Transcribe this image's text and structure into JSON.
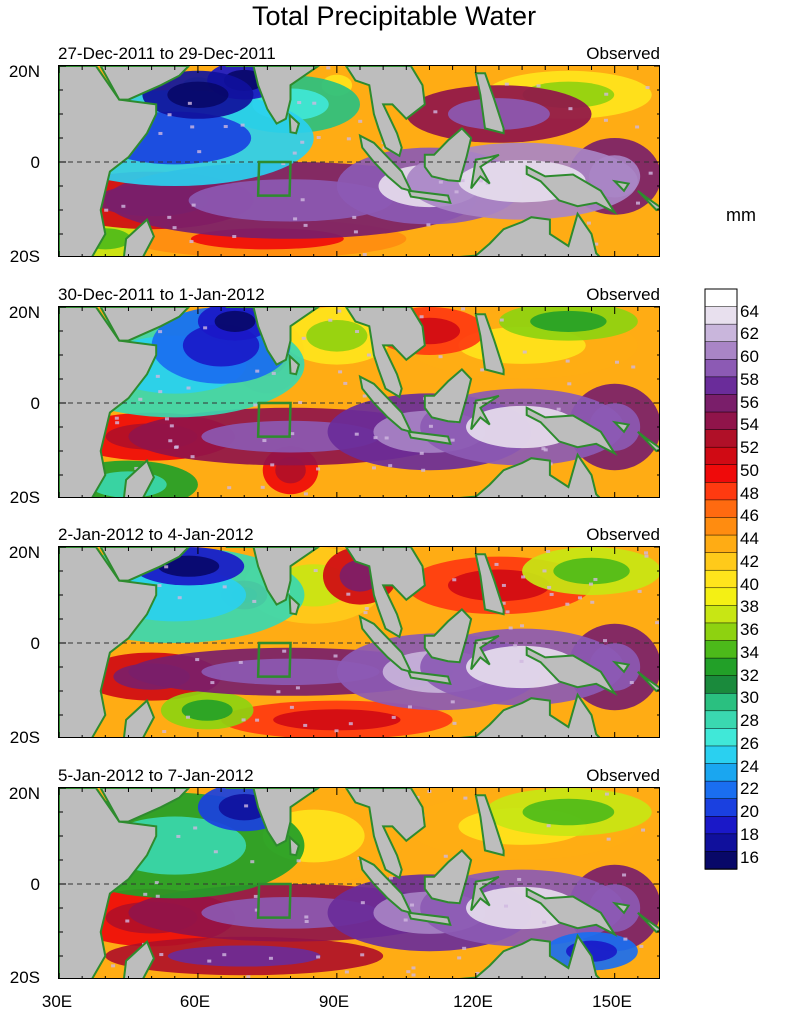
{
  "title": "Total Precipitable Water",
  "unit": "mm",
  "panels": [
    {
      "period": "27-Dec-2011 to 29-Dec-2011",
      "tag": "Observed"
    },
    {
      "period": "30-Dec-2011 to 1-Jan-2012",
      "tag": "Observed"
    },
    {
      "period": "2-Jan-2012 to 4-Jan-2012",
      "tag": "Observed"
    },
    {
      "period": "5-Jan-2012 to 7-Jan-2012",
      "tag": "Observed"
    }
  ],
  "lat_labels": [
    "20N",
    "0",
    "20S"
  ],
  "lon_labels": [
    "30E",
    "60E",
    "90E",
    "120E",
    "150E"
  ],
  "colorbar": {
    "labels": [
      "64",
      "62",
      "60",
      "58",
      "56",
      "54",
      "52",
      "50",
      "48",
      "46",
      "44",
      "42",
      "40",
      "38",
      "36",
      "34",
      "32",
      "30",
      "28",
      "26",
      "24",
      "22",
      "20",
      "18",
      "16"
    ],
    "min": 15,
    "max": 66,
    "colors": [
      "#ffffff",
      "#e8e0ee",
      "#c9b6dc",
      "#a985c6",
      "#8c5ab4",
      "#6a2c9a",
      "#7a1e6a",
      "#90144a",
      "#b01028",
      "#d00a14",
      "#ef0a0a",
      "#ff3a10",
      "#ff6a10",
      "#ff8c10",
      "#ffac14",
      "#ffca1a",
      "#ffe41c",
      "#f4f014",
      "#c8e614",
      "#8ed210",
      "#4cba1a",
      "#22a028",
      "#1a8a3c",
      "#2ac080",
      "#3ad8b0",
      "#40e8d8",
      "#2ad0f0",
      "#1aa6f0",
      "#1a6ef0",
      "#1a40e0",
      "#1a18c8",
      "#10109c",
      "#080868"
    ]
  },
  "region_box": {
    "lon": [
      73,
      80
    ],
    "lat": [
      -7,
      0
    ]
  },
  "colors": {
    "land": "#bdbdbd",
    "coast": "#2e8b2e",
    "frame": "#000000"
  }
}
